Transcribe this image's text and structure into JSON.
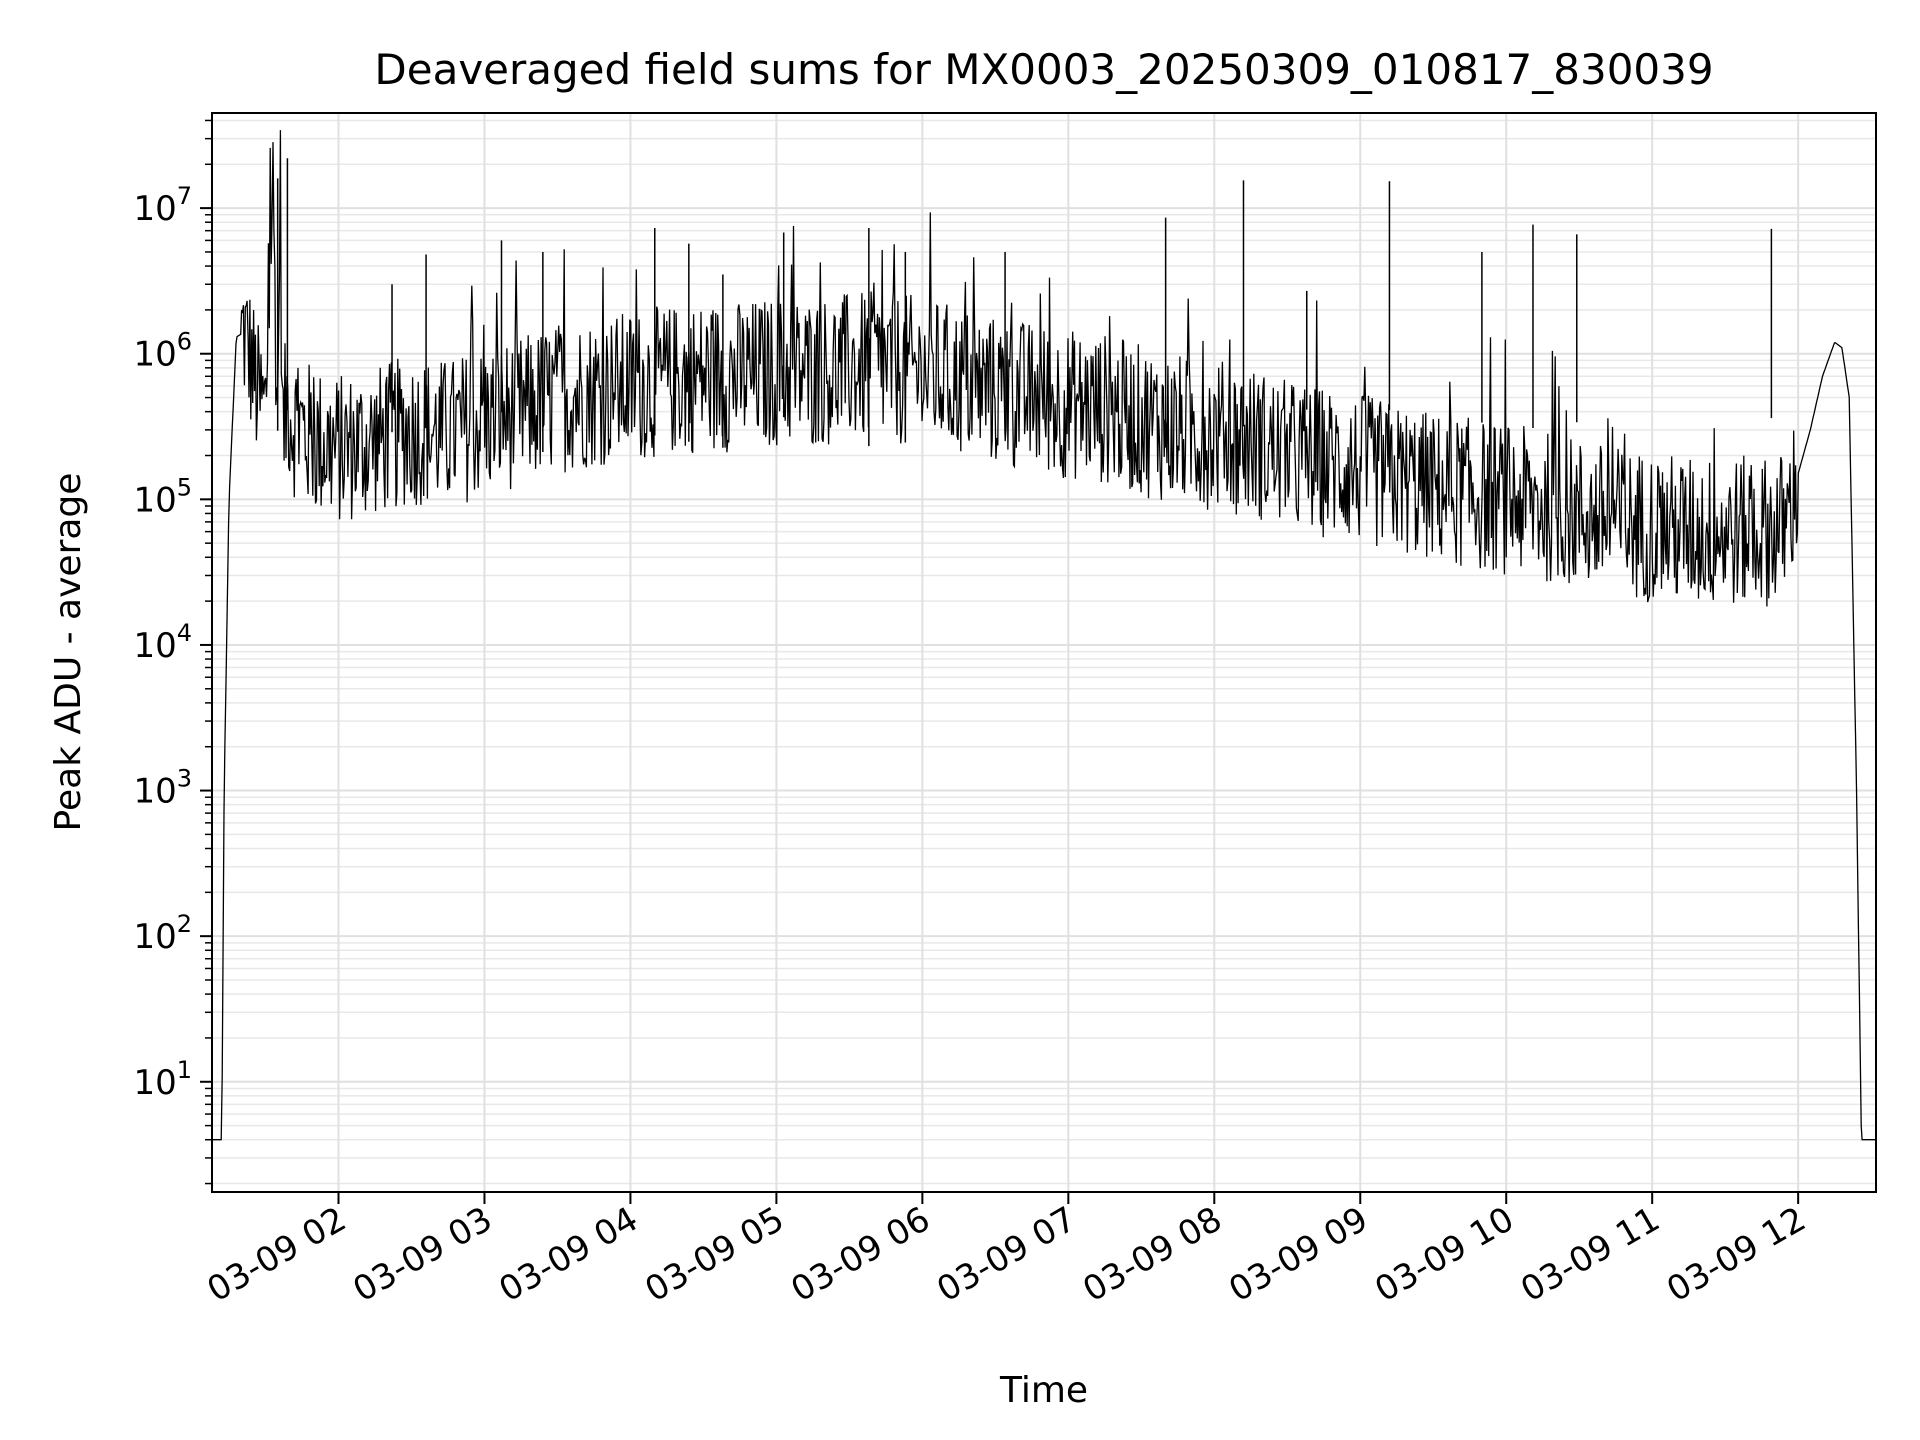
{
  "chart_data": {
    "type": "line",
    "title": "Deaveraged field sums for MX0003_20250309_010817_830039",
    "xlabel": "Time",
    "ylabel": "Peak ADU - average",
    "xscale": "time",
    "yscale": "log",
    "xlim": [
      "2025-03-09 01:08",
      "2025-03-09 12:32"
    ],
    "ylim": [
      1.75,
      45000000
    ],
    "grid": true,
    "x_ticks": [
      "03-09 02",
      "03-09 03",
      "03-09 04",
      "03-09 05",
      "03-09 06",
      "03-09 07",
      "03-09 08",
      "03-09 09",
      "03-09 10",
      "03-09 11",
      "03-09 12"
    ],
    "y_ticks": [
      {
        "base": "10",
        "exp": "1",
        "value": 10
      },
      {
        "base": "10",
        "exp": "2",
        "value": 100
      },
      {
        "base": "10",
        "exp": "3",
        "value": 1000
      },
      {
        "base": "10",
        "exp": "4",
        "value": 10000
      },
      {
        "base": "10",
        "exp": "5",
        "value": 100000
      },
      {
        "base": "10",
        "exp": "6",
        "value": 1000000
      },
      {
        "base": "10",
        "exp": "7",
        "value": 10000000
      }
    ],
    "series": [
      {
        "color": "#000000",
        "x": [
          "2025-03-09 01:08",
          "2025-03-09 01:12",
          "2025-03-09 01:13",
          "2025-03-09 01:15",
          "2025-03-09 01:18",
          "2025-03-09 01:21",
          "2025-03-09 01:24",
          "2025-03-09 01:27",
          "2025-03-09 01:30",
          "2025-03-09 01:33",
          "2025-03-09 01:35",
          "2025-03-09 01:36",
          "2025-03-09 01:37",
          "2025-03-09 01:39",
          "2025-03-09 01:41",
          "2025-03-09 01:45",
          "2025-03-09 01:50",
          "2025-03-09 02:00",
          "2025-03-09 02:15",
          "2025-03-09 02:30",
          "2025-03-09 02:45",
          "2025-03-09 03:00",
          "2025-03-09 03:15",
          "2025-03-09 03:30",
          "2025-03-09 03:45",
          "2025-03-09 04:00",
          "2025-03-09 04:15",
          "2025-03-09 04:30",
          "2025-03-09 04:45",
          "2025-03-09 05:00",
          "2025-03-09 05:15",
          "2025-03-09 05:30",
          "2025-03-09 05:45",
          "2025-03-09 06:00",
          "2025-03-09 06:15",
          "2025-03-09 06:30",
          "2025-03-09 06:45",
          "2025-03-09 07:00",
          "2025-03-09 07:15",
          "2025-03-09 07:30",
          "2025-03-09 07:45",
          "2025-03-09 08:00",
          "2025-03-09 08:15",
          "2025-03-09 08:30",
          "2025-03-09 08:45",
          "2025-03-09 09:00",
          "2025-03-09 09:15",
          "2025-03-09 09:30",
          "2025-03-09 09:45",
          "2025-03-09 10:00",
          "2025-03-09 10:15",
          "2025-03-09 10:30",
          "2025-03-09 10:45",
          "2025-03-09 11:00",
          "2025-03-09 11:15",
          "2025-03-09 11:30",
          "2025-03-09 11:45",
          "2025-03-09 11:55",
          "2025-03-09 12:00",
          "2025-03-09 12:05",
          "2025-03-09 12:10",
          "2025-03-09 12:15",
          "2025-03-09 12:18",
          "2025-03-09 12:21",
          "2025-03-09 12:24",
          "2025-03-09 12:26",
          "2025-03-09 12:28",
          "2025-03-09 12:32"
        ],
        "y": [
          4,
          4,
          1000,
          100000,
          1300000,
          1400000,
          900000,
          500000,
          400000,
          16000000,
          300000,
          22000000,
          250000,
          500000,
          350000,
          300000,
          250000,
          220000,
          250000,
          300000,
          280000,
          350000,
          400000,
          500000,
          550000,
          600000,
          650000,
          700000,
          700000,
          750000,
          750000,
          800000,
          800000,
          750000,
          650000,
          550000,
          500000,
          450000,
          420000,
          350000,
          300000,
          280000,
          250000,
          200000,
          180000,
          160000,
          140000,
          120000,
          110000,
          100000,
          90000,
          80000,
          70000,
          65000,
          60000,
          60000,
          60000,
          65000,
          150000,
          300000,
          700000,
          1200000,
          1100000,
          500000,
          1000,
          4,
          4,
          4
        ]
      }
    ],
    "peaks": {
      "x": [
        "2025-03-09 01:35",
        "2025-03-09 01:39",
        "2025-03-09 02:22",
        "2025-03-09 02:36",
        "2025-03-09 03:07",
        "2025-03-09 03:24",
        "2025-03-09 04:10",
        "2025-03-09 04:24",
        "2025-03-09 04:38",
        "2025-03-09 05:03",
        "2025-03-09 05:38",
        "2025-03-09 05:53",
        "2025-03-09 06:34",
        "2025-03-09 07:40",
        "2025-03-09 08:12",
        "2025-03-09 08:38",
        "2025-03-09 09:12",
        "2025-03-09 09:50",
        "2025-03-09 10:11",
        "2025-03-09 10:29",
        "2025-03-09 11:49"
      ],
      "y": [
        16000000,
        22000000,
        3000000,
        4800000,
        6000000,
        5000000,
        7300000,
        5700000,
        3500000,
        6800000,
        7300000,
        5000000,
        5000000,
        8600000,
        15500000,
        2700000,
        15300000,
        5000000,
        7700000,
        6600000,
        7200000
      ]
    }
  }
}
